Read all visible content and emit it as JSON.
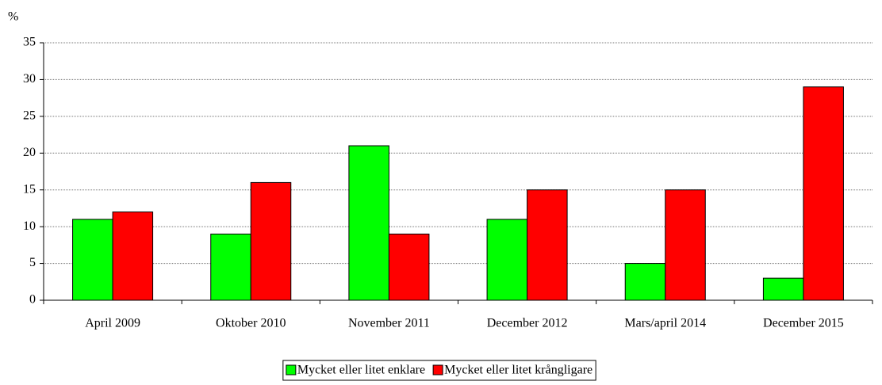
{
  "chart_data": {
    "type": "bar",
    "y_label": "%",
    "categories": [
      "April 2009",
      "Oktober 2010",
      "November 2011",
      "December 2012",
      "Mars/april 2014",
      "December 2015"
    ],
    "series": [
      {
        "name": "Mycket eller litet enklare",
        "color": "#00ff00",
        "values": [
          11,
          9,
          21,
          11,
          5,
          3
        ]
      },
      {
        "name": "Mycket eller litet krångligare",
        "color": "#ff0000",
        "values": [
          12,
          16,
          9,
          15,
          15,
          29
        ]
      }
    ],
    "ylim": [
      0,
      35
    ],
    "yticks": [
      0,
      5,
      10,
      15,
      20,
      25,
      30,
      35
    ],
    "grid": true,
    "legend": "bottom"
  }
}
